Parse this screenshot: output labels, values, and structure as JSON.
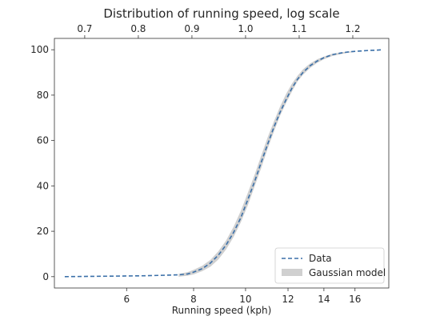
{
  "chart_data": {
    "type": "line",
    "title": "Distribution of running speed, log scale",
    "xlabel": "Running speed (kph)",
    "ylabel": "",
    "x_scale": "log",
    "xlim": [
      4.4,
      18.5
    ],
    "ylim": [
      -5,
      105
    ],
    "x_ticks": [
      6,
      8,
      10,
      12,
      14,
      16
    ],
    "y_ticks": [
      0,
      20,
      40,
      60,
      80,
      100
    ],
    "top_axis": {
      "label": "",
      "ticks": [
        0.7,
        0.8,
        0.9,
        1.0,
        1.1,
        1.2
      ],
      "tick_labels": [
        "0.7",
        "0.8",
        "0.9",
        "1.0",
        "1.1",
        "1.2"
      ],
      "scale": "log10 of running speed"
    },
    "legend": {
      "position": "lower-right",
      "entries": [
        "Data",
        "Gaussian model"
      ]
    },
    "grid": false,
    "series": [
      {
        "name": "Data",
        "style": "dashed",
        "color": "#3a6fa8",
        "x": [
          4.6,
          5.0,
          5.5,
          6.0,
          6.5,
          7.0,
          7.5,
          7.8,
          8.0,
          8.3,
          8.6,
          8.9,
          9.2,
          9.5,
          9.8,
          10.1,
          10.4,
          10.7,
          11.0,
          11.3,
          11.6,
          11.9,
          12.2,
          12.5,
          12.8,
          13.2,
          13.6,
          14.0,
          14.5,
          15.0,
          15.5,
          16.0,
          16.5,
          17.0,
          17.5,
          18.0
        ],
        "y": [
          0,
          0.1,
          0.2,
          0.3,
          0.4,
          0.6,
          0.8,
          1.2,
          2.0,
          3.5,
          6.0,
          9.5,
          14.0,
          19.5,
          26.0,
          34.0,
          42.0,
          50.5,
          58.5,
          66.0,
          72.5,
          78.0,
          83.0,
          87.0,
          90.0,
          93.0,
          95.0,
          96.5,
          97.8,
          98.5,
          99.0,
          99.3,
          99.5,
          99.7,
          99.8,
          100.0
        ]
      },
      {
        "name": "Gaussian model",
        "style": "band",
        "color": "#d0d0d0",
        "x": [
          7.5,
          7.8,
          8.0,
          8.3,
          8.6,
          8.9,
          9.2,
          9.5,
          9.8,
          10.1,
          10.4,
          10.7,
          11.0,
          11.3,
          11.6,
          11.9,
          12.2,
          12.5,
          12.8,
          13.2,
          13.6,
          14.0,
          14.5,
          15.0,
          15.5,
          16.0
        ],
        "y_low": [
          0.0,
          0.4,
          1.0,
          2.4,
          4.4,
          7.6,
          12.0,
          17.5,
          24.0,
          31.5,
          39.8,
          48.0,
          56.5,
          64.0,
          71.0,
          76.5,
          81.5,
          86.0,
          89.0,
          92.0,
          94.2,
          95.8,
          97.2,
          98.0,
          98.6,
          99.0
        ],
        "y_high": [
          1.2,
          2.0,
          3.0,
          4.8,
          7.4,
          11.2,
          16.0,
          22.0,
          29.0,
          37.0,
          45.0,
          53.5,
          61.5,
          68.5,
          75.0,
          80.5,
          85.0,
          88.5,
          91.4,
          94.0,
          95.8,
          97.0,
          98.2,
          98.8,
          99.2,
          99.4
        ]
      }
    ]
  }
}
